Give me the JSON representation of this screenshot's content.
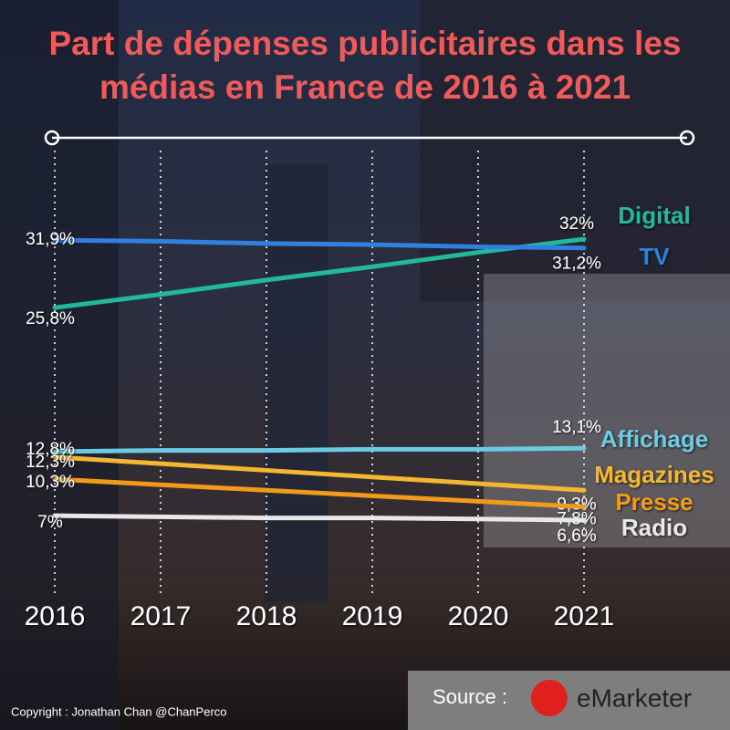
{
  "chart_data": {
    "type": "line",
    "title": "Part de dépenses publicitaires dans les médias en France de 2016 à 2021",
    "categories": [
      "2016",
      "2017",
      "2018",
      "2019",
      "2020",
      "2021"
    ],
    "series": [
      {
        "name": "Digital",
        "color": "#22b89c",
        "values": [
          25.8,
          27.0,
          28.3,
          29.5,
          30.8,
          32
        ],
        "value_labels": [
          "25,8%",
          null,
          null,
          null,
          null,
          "32%"
        ]
      },
      {
        "name": "TV",
        "color": "#2f80e0",
        "values": [
          31.9,
          31.8,
          31.6,
          31.5,
          31.3,
          31.2
        ],
        "value_labels": [
          "31,9%",
          null,
          null,
          null,
          null,
          "31,2%"
        ]
      },
      {
        "name": "Affichage",
        "color": "#6ccbe3",
        "values": [
          12.8,
          12.9,
          12.9,
          13.0,
          13.0,
          13.1
        ],
        "value_labels": [
          "12,8%",
          null,
          null,
          null,
          null,
          "13,1%"
        ]
      },
      {
        "name": "Magazines",
        "color": "#f5b731",
        "values": [
          12.3,
          11.7,
          11.1,
          10.5,
          9.9,
          9.3
        ],
        "value_labels": [
          "12,3%",
          null,
          null,
          null,
          null,
          "9,3%"
        ]
      },
      {
        "name": "Presse",
        "color": "#f29a1a",
        "values": [
          10.3,
          9.8,
          9.3,
          8.8,
          8.3,
          7.8
        ],
        "value_labels": [
          "10,3%",
          null,
          null,
          null,
          null,
          "7,8%"
        ]
      },
      {
        "name": "Radio",
        "color": "#e8e8e8",
        "values": [
          7,
          6.9,
          6.8,
          6.8,
          6.7,
          6.6
        ],
        "value_labels": [
          "7%",
          null,
          null,
          null,
          null,
          "6,6%"
        ]
      }
    ],
    "source_label": "Source :",
    "source": "eMarketer",
    "copyright": "Copyright : Jonathan Chan  @ChanPerco"
  }
}
